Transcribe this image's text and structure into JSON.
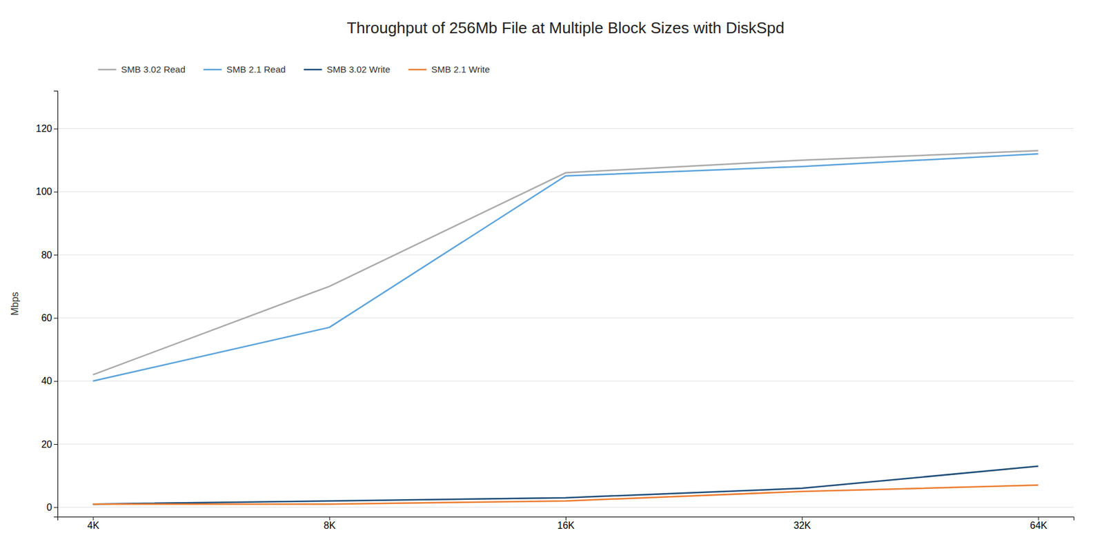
{
  "chart_data": {
    "type": "line",
    "title": "Throughput of 256Mb File at Multiple Block Sizes with DiskSpd",
    "ylabel": "Mbps",
    "categories": [
      "4K",
      "8K",
      "16K",
      "32K",
      "64K"
    ],
    "series": [
      {
        "name": "SMB 3.02 Read",
        "color": "#AAAAAA",
        "values": [
          42,
          70,
          106,
          110,
          113
        ]
      },
      {
        "name": "SMB 2.1 Read",
        "color": "#5BA3DC",
        "values": [
          40,
          57,
          105,
          108,
          112
        ]
      },
      {
        "name": "SMB 3.02 Write",
        "color": "#1F4E79",
        "values": [
          1,
          2,
          3,
          6,
          13
        ]
      },
      {
        "name": "SMB 2.1 Write",
        "color": "#ED7D31",
        "values": [
          1,
          1,
          2,
          5,
          7
        ]
      }
    ],
    "ylim": [
      -3,
      132
    ],
    "yticks": [
      0,
      20,
      40,
      60,
      80,
      100,
      120
    ],
    "grid": true,
    "legend": "upper left"
  }
}
